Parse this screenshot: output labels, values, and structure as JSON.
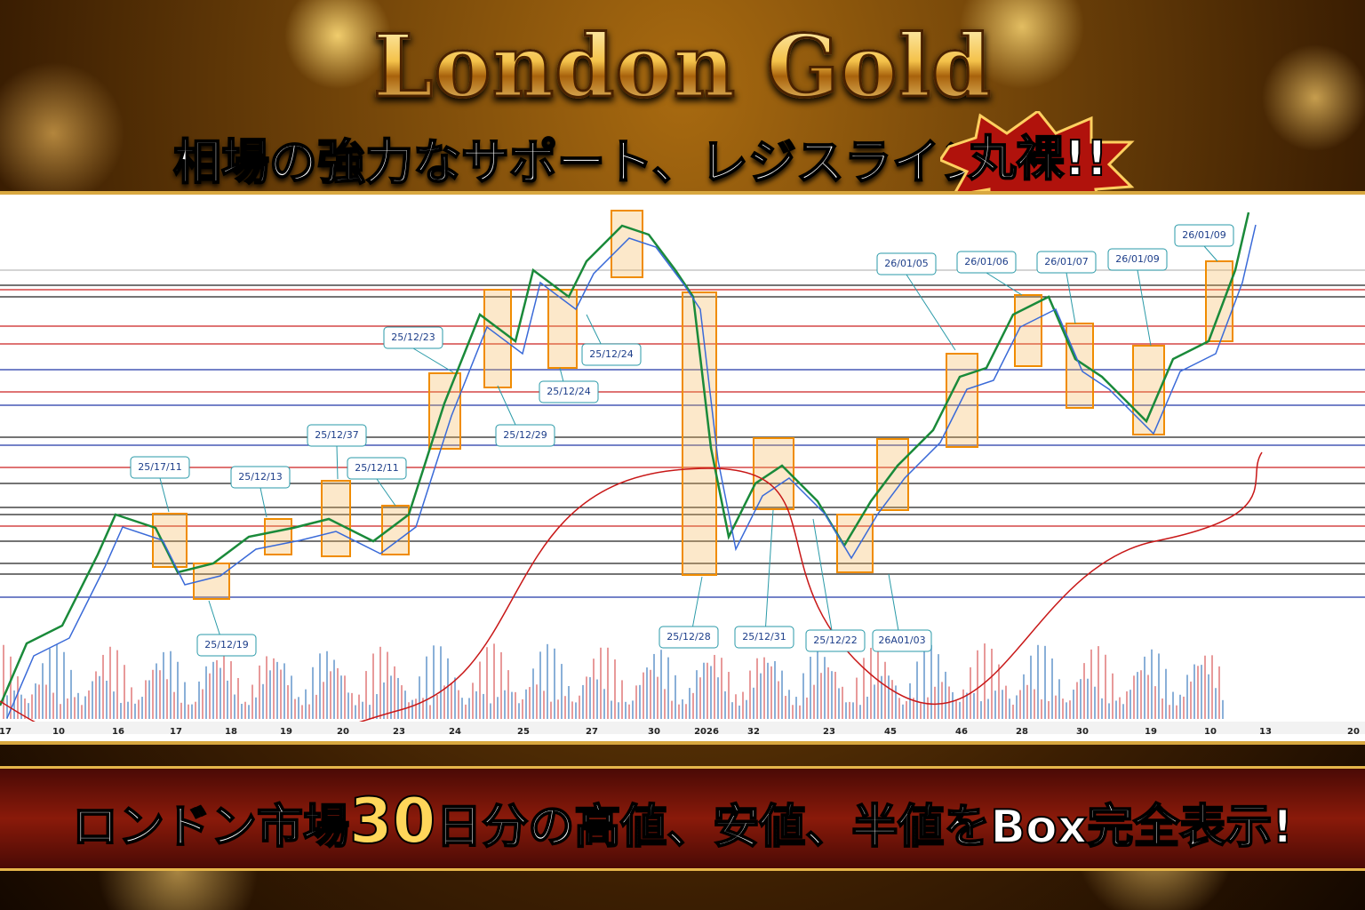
{
  "header": {
    "title": "London Gold",
    "subtitle": "相場の強力なサポート、レジスラインが",
    "badge": "丸裸!!"
  },
  "chart": {
    "callouts": [
      "25/17/11",
      "25/12/13",
      "25/12/37",
      "25/12/11",
      "25/12/23",
      "25/12/24",
      "25/12/24",
      "25/12/29",
      "25/12/19",
      "25/12/28",
      "25/12/31",
      "25/12/22",
      "26A01/03",
      "26/01/05",
      "26/01/06",
      "26/01/07",
      "26/01/09",
      "26/01/09"
    ],
    "x_labels": [
      "17",
      "10",
      "16",
      "17",
      "18",
      "19",
      "20",
      "23",
      "24",
      "25",
      "27",
      "30",
      "2026",
      "32",
      "23",
      "45",
      "46",
      "28",
      "30",
      "19",
      "10",
      "13",
      "20"
    ]
  },
  "footer": {
    "text_before": "ロンドン市場",
    "text_number": "30",
    "text_after": "日分の高値、安値、半値を",
    "text_box": "Box",
    "text_end": "完全表示!"
  }
}
